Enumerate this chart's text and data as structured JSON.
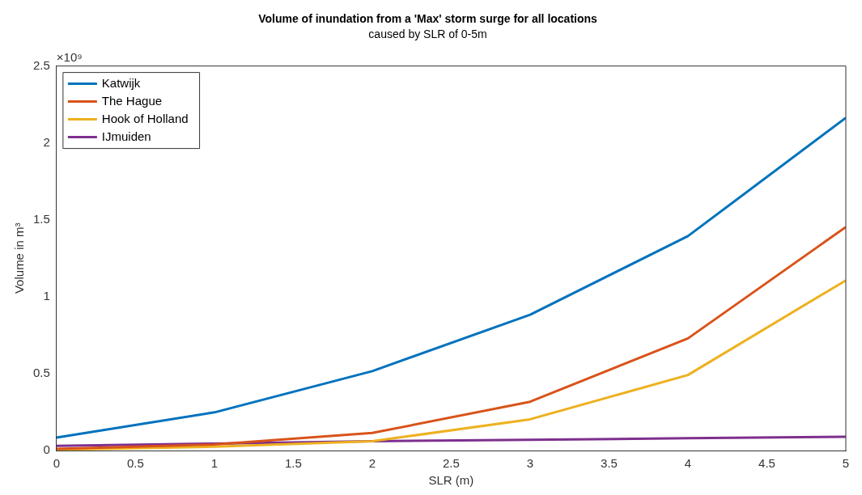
{
  "chart_data": {
    "type": "line",
    "title": "Volume of inundation from a 'Max' storm surge for all locations",
    "subtitle": "caused by SLR of 0-5m",
    "xlabel": "SLR (m)",
    "ylabel": "Volume in m³",
    "annotations": [
      "×10⁹"
    ],
    "x": [
      0,
      1,
      2,
      3,
      4,
      5
    ],
    "series": [
      {
        "name": "Katwijk",
        "color": "#0072bd",
        "values": [
          0.084,
          0.248,
          0.516,
          0.883,
          1.394,
          2.163
        ]
      },
      {
        "name": "The Hague",
        "color": "#d95319",
        "values": [
          0.01,
          0.04,
          0.114,
          0.317,
          0.729,
          1.453
        ]
      },
      {
        "name": "Hook of Holland",
        "color": "#edb120",
        "values": [
          0.005,
          0.025,
          0.06,
          0.203,
          0.491,
          1.106
        ]
      },
      {
        "name": "IJmuiden",
        "color": "#7e2f8e",
        "values": [
          0.03,
          0.045,
          0.06,
          0.07,
          0.08,
          0.09
        ]
      }
    ],
    "xlim": [
      0,
      5
    ],
    "xticks": [
      0,
      0.5,
      1,
      1.5,
      2,
      2.5,
      3,
      3.5,
      4,
      4.5,
      5
    ],
    "ylim": [
      0,
      2.5
    ],
    "yticks": [
      0,
      0.5,
      1,
      1.5,
      2,
      2.5
    ],
    "grid": false,
    "legend": "top left",
    "marker": "none",
    "line_style": "solid"
  }
}
